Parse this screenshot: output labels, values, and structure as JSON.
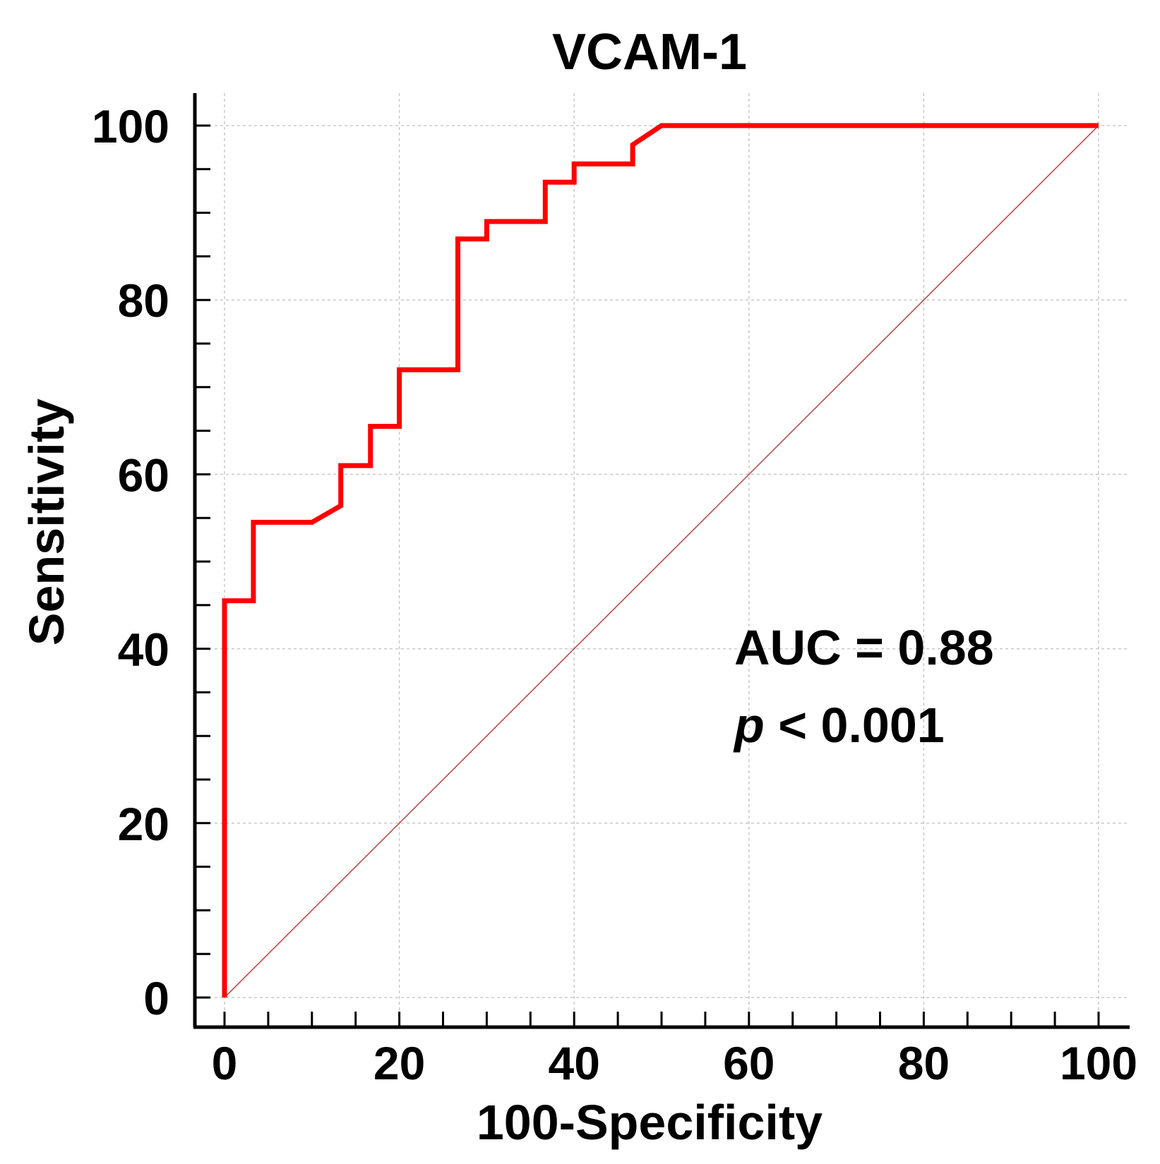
{
  "chart_data": {
    "type": "line",
    "title": "VCAM-1",
    "xlabel": "100-Specificity",
    "ylabel": "Sensitivity",
    "xlim": [
      0,
      100
    ],
    "ylim": [
      0,
      100
    ],
    "x_ticks": [
      "0",
      "20",
      "40",
      "60",
      "80",
      "100"
    ],
    "y_ticks": [
      "0",
      "20",
      "40",
      "60",
      "80",
      "100"
    ],
    "grid": true,
    "series": [
      {
        "name": "ROC curve",
        "color": "#ff0000",
        "x": [
          0,
          0,
          3.3,
          3.3,
          10,
          13.3,
          13.3,
          16.7,
          16.7,
          20,
          20,
          26.7,
          26.7,
          30,
          30,
          36.7,
          36.7,
          40,
          40,
          46.7,
          46.7,
          50,
          100
        ],
        "y": [
          0,
          45.5,
          45.5,
          54.5,
          54.5,
          56.4,
          61,
          61,
          65.5,
          65.5,
          72,
          72,
          87,
          87,
          89,
          89,
          93.5,
          93.5,
          95.6,
          95.6,
          97.8,
          100,
          100
        ]
      },
      {
        "name": "Reference line",
        "color": "#c04040",
        "x": [
          0,
          100
        ],
        "y": [
          0,
          100
        ]
      }
    ],
    "annotations": {
      "auc_text": "AUC = 0.88",
      "p_symbol": "p",
      "p_rest": " < 0.001"
    }
  }
}
